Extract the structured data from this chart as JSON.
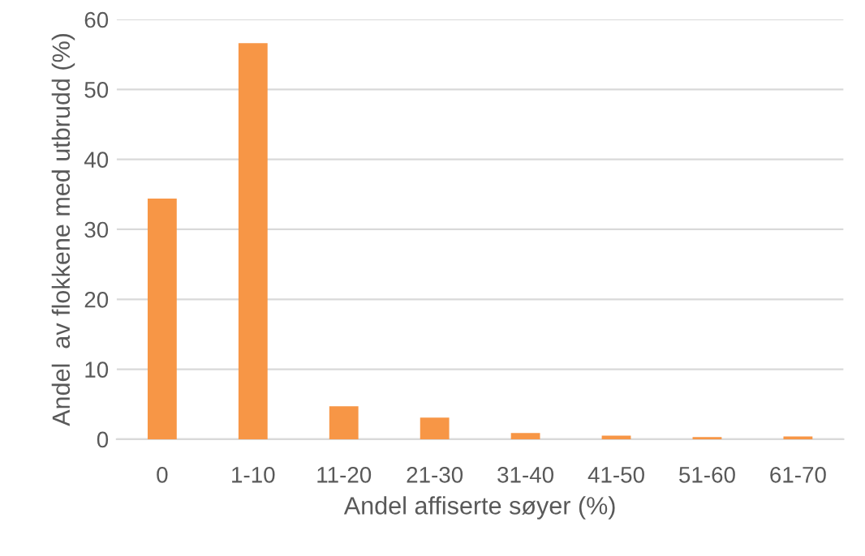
{
  "chart_data": {
    "type": "bar",
    "xlabel": "Andel affiserte søyer (%)",
    "ylabel": "Andel  av flokkene med utbrudd (%)",
    "categories": [
      "0",
      "1-10",
      "11-20",
      "21-30",
      "31-40",
      "41-50",
      "51-60",
      "61-70"
    ],
    "values": [
      34.4,
      56.6,
      4.7,
      3.1,
      0.9,
      0.5,
      0.3,
      0.4
    ],
    "color": "#f79646",
    "ylim": [
      0,
      60
    ],
    "yticks": [
      0,
      10,
      20,
      30,
      40,
      50,
      60
    ],
    "grid": "y",
    "legend": false
  }
}
